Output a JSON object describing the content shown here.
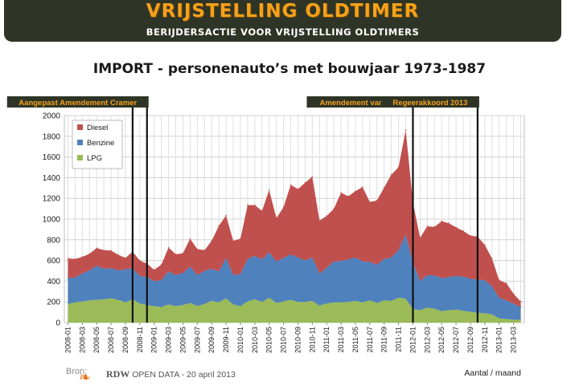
{
  "banner": {
    "title": "VRIJSTELLING OLDTIMER",
    "subtitle": "BERIJDERSACTIE VOOR VRIJSTELLING OLDTIMERS"
  },
  "footer": {
    "source_label": "Bron:",
    "source_org": "RDW",
    "source_text": " OPEN DATA - 20 april 2013",
    "unit": "Aantal / maand"
  },
  "colors": {
    "diesel": "#c0504d",
    "benzine": "#4f81bd",
    "lpg": "#9bbb59",
    "banner_bg": "#2f3526",
    "banner_title": "#f5a11c",
    "event_label_bg": "#2f3526",
    "event_label_text": "#f5a11c"
  },
  "chart_data": {
    "type": "area",
    "stacked": true,
    "title": "IMPORT - personenauto’s met bouwjaar 1973-1987",
    "xlabel": "",
    "ylabel": "",
    "ylim": [
      0,
      2000
    ],
    "yticks": [
      0,
      200,
      400,
      600,
      800,
      1000,
      1200,
      1400,
      1600,
      1800,
      2000
    ],
    "grid": true,
    "legend_position": "top-left",
    "x": [
      "2008-01",
      "2008-02",
      "2008-03",
      "2008-04",
      "2008-05",
      "2008-06",
      "2008-07",
      "2008-08",
      "2008-09",
      "2008-10",
      "2008-11",
      "2008-12",
      "2009-01",
      "2009-02",
      "2009-03",
      "2009-04",
      "2009-05",
      "2009-06",
      "2009-07",
      "2009-08",
      "2009-09",
      "2009-10",
      "2009-11",
      "2009-12",
      "2010-01",
      "2010-02",
      "2010-03",
      "2010-04",
      "2010-05",
      "2010-06",
      "2010-07",
      "2010-08",
      "2010-09",
      "2010-10",
      "2010-11",
      "2010-12",
      "2011-01",
      "2011-02",
      "2011-03",
      "2011-04",
      "2011-05",
      "2011-06",
      "2011-07",
      "2011-08",
      "2011-09",
      "2011-10",
      "2011-11",
      "2011-12",
      "2012-01",
      "2012-02",
      "2012-03",
      "2012-04",
      "2012-05",
      "2012-06",
      "2012-07",
      "2012-08",
      "2012-09",
      "2012-10",
      "2012-11",
      "2012-12",
      "2013-01",
      "2013-02",
      "2013-03",
      "2013-04"
    ],
    "xtick_labels": [
      "2008-01",
      "2008-03",
      "2008-05",
      "2008-07",
      "2008-09",
      "2008-11",
      "2009-01",
      "2009-03",
      "2009-05",
      "2009-07",
      "2009-09",
      "2009-11",
      "2010-01",
      "2010-03",
      "2010-05",
      "2010-07",
      "2010-09",
      "2010-11",
      "2011-01",
      "2011-03",
      "2011-05",
      "2011-07",
      "2011-09",
      "2011-11",
      "2012-01",
      "2012-03",
      "2012-05",
      "2012-07",
      "2012-09",
      "2012-11",
      "2013-01",
      "2013-03"
    ],
    "series": [
      {
        "name": "LPG",
        "values": [
          180,
          195,
          205,
          215,
          220,
          225,
          235,
          220,
          195,
          225,
          185,
          170,
          160,
          150,
          175,
          160,
          170,
          190,
          160,
          180,
          210,
          195,
          235,
          175,
          160,
          205,
          225,
          200,
          240,
          190,
          205,
          220,
          200,
          200,
          210,
          165,
          185,
          195,
          195,
          200,
          210,
          195,
          215,
          190,
          215,
          210,
          240,
          230,
          130,
          120,
          145,
          135,
          110,
          120,
          125,
          115,
          105,
          95,
          90,
          80,
          40,
          35,
          28,
          25
        ]
      },
      {
        "name": "Benzine",
        "values": [
          250,
          240,
          270,
          290,
          330,
          295,
          290,
          285,
          320,
          300,
          265,
          270,
          240,
          260,
          320,
          300,
          310,
          350,
          300,
          320,
          310,
          300,
          390,
          285,
          310,
          410,
          420,
          410,
          440,
          400,
          420,
          440,
          430,
          400,
          420,
          310,
          345,
          395,
          400,
          410,
          420,
          395,
          370,
          370,
          400,
          420,
          460,
          620,
          450,
          280,
          315,
          320,
          320,
          320,
          325,
          330,
          320,
          320,
          320,
          270,
          200,
          180,
          155,
          125
        ]
      },
      {
        "name": "Diesel",
        "values": [
          190,
          180,
          160,
          160,
          170,
          180,
          170,
          150,
          110,
          160,
          150,
          130,
          110,
          150,
          230,
          200,
          190,
          270,
          250,
          200,
          270,
          440,
          410,
          330,
          340,
          520,
          490,
          470,
          600,
          420,
          490,
          670,
          660,
          750,
          780,
          510,
          500,
          510,
          660,
          610,
          640,
          720,
          580,
          620,
          690,
          800,
          800,
          1010,
          580,
          420,
          470,
          470,
          550,
          520,
          470,
          440,
          415,
          415,
          340,
          270,
          170,
          165,
          95,
          55
        ]
      }
    ],
    "events": [
      {
        "label": "Amendement Cramer",
        "x": "2008-10"
      },
      {
        "label": "Aangepast Amendement Cramer",
        "x": "2008-12"
      },
      {
        "label": "Amendement van Vliet",
        "x": "2012-01"
      },
      {
        "label": "Regeerakkoord 2013",
        "x": "2012-10"
      }
    ]
  }
}
